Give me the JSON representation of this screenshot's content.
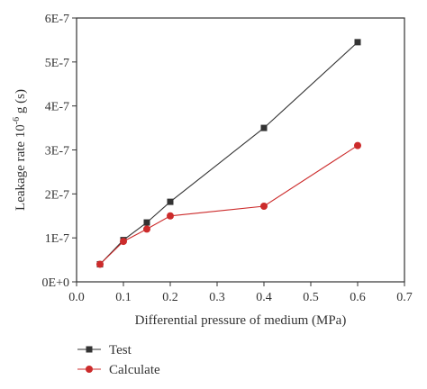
{
  "chart_data": {
    "type": "line",
    "title": "",
    "xlabel": "Differential pressure of medium (MPa)",
    "ylabel_prefix": "Leakage rate 10",
    "ylabel_exponent": "-6",
    "ylabel_suffix": " g (s)",
    "xlim": [
      0.0,
      0.7
    ],
    "ylim": [
      0,
      6e-07
    ],
    "xticks": [
      0.0,
      0.1,
      0.2,
      0.3,
      0.4,
      0.5,
      0.6,
      0.7
    ],
    "xtick_labels": [
      "0.0",
      "0.1",
      "0.2",
      "0.3",
      "0.4",
      "0.5",
      "0.6",
      "0.7"
    ],
    "yticks": [
      0,
      1e-07,
      2e-07,
      3e-07,
      4e-07,
      5e-07,
      6e-07
    ],
    "ytick_labels": [
      "0E+0",
      "1E-7",
      "2E-7",
      "3E-7",
      "4E-7",
      "5E-7",
      "6E-7"
    ],
    "grid": false,
    "legend_position": "bottom-left",
    "series": [
      {
        "name": "Test",
        "color": "#333333",
        "marker": "square",
        "x": [
          0.05,
          0.1,
          0.15,
          0.2,
          0.4,
          0.6
        ],
        "y": [
          4e-08,
          9.5e-08,
          1.35e-07,
          1.82e-07,
          3.5e-07,
          5.45e-07
        ]
      },
      {
        "name": "Calculate",
        "color": "#cc2b2b",
        "marker": "circle",
        "x": [
          0.05,
          0.1,
          0.15,
          0.2,
          0.4,
          0.6
        ],
        "y": [
          4e-08,
          9.2e-08,
          1.2e-07,
          1.5e-07,
          1.72e-07,
          3.1e-07
        ]
      }
    ]
  }
}
